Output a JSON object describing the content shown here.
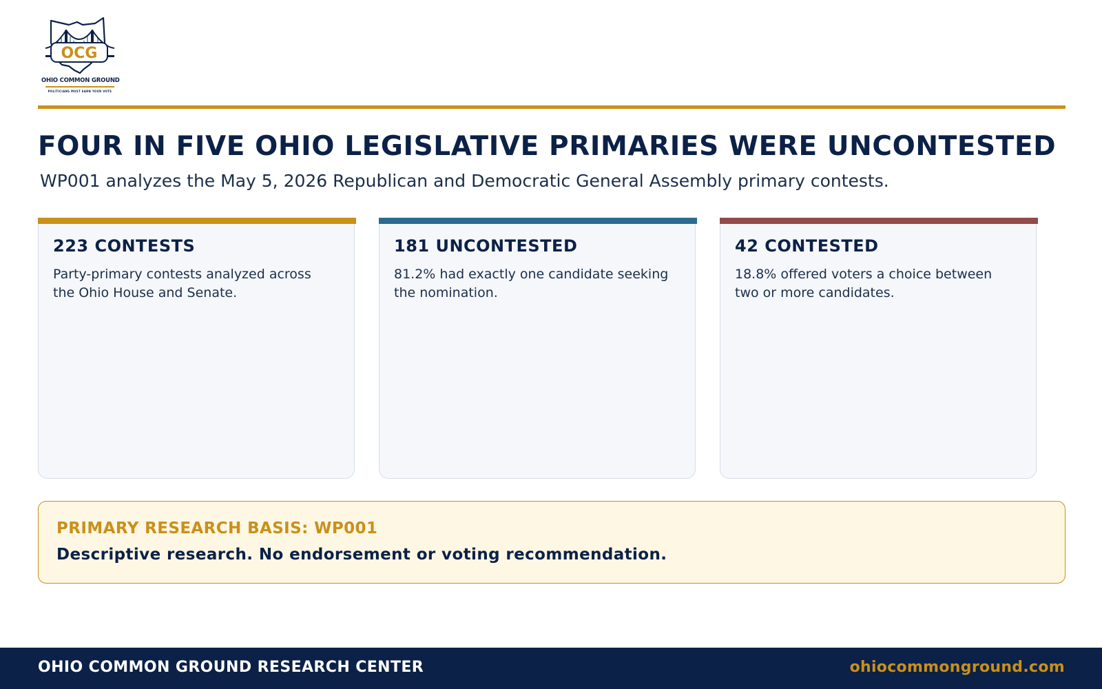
{
  "brand": {
    "logo_abbrev": "OCG",
    "logo_name": "OHIO COMMON GROUND",
    "logo_tagline": "POLITICIANS MUST EARN YOUR VOTE",
    "logo_icon": "ohio-bridge-logo-icon"
  },
  "headline": "FOUR IN FIVE OHIO LEGISLATIVE PRIMARIES WERE UNCONTESTED",
  "subhead": "WP001 analyzes the May 5, 2026 Republican and Democratic General Assembly primary contests.",
  "cards": [
    {
      "title": "223 CONTESTS",
      "description": "Party-primary contests analyzed across the Ohio House and Senate.",
      "accent_color": "#c9901a"
    },
    {
      "title": "181 UNCONTESTED",
      "description": "81.2% had exactly one candidate seeking the nomination.",
      "accent_color": "#2c6a8f"
    },
    {
      "title": "42 CONTESTED",
      "description": "18.8% offered voters a choice between two or more candidates.",
      "accent_color": "#934a4a"
    }
  ],
  "note": {
    "label": "PRIMARY RESEARCH BASIS: WP001",
    "text": "Descriptive research. No endorsement or voting recommendation."
  },
  "footer": {
    "org": "OHIO COMMON GROUND RESEARCH CENTER",
    "url": "ohiocommonground.com"
  },
  "colors": {
    "navy": "#0b2147",
    "gold": "#c9901a",
    "steel_blue": "#2c6a8f",
    "brick_red": "#934a4a",
    "card_bg": "#f5f7fb",
    "note_bg": "#fef7e4"
  }
}
